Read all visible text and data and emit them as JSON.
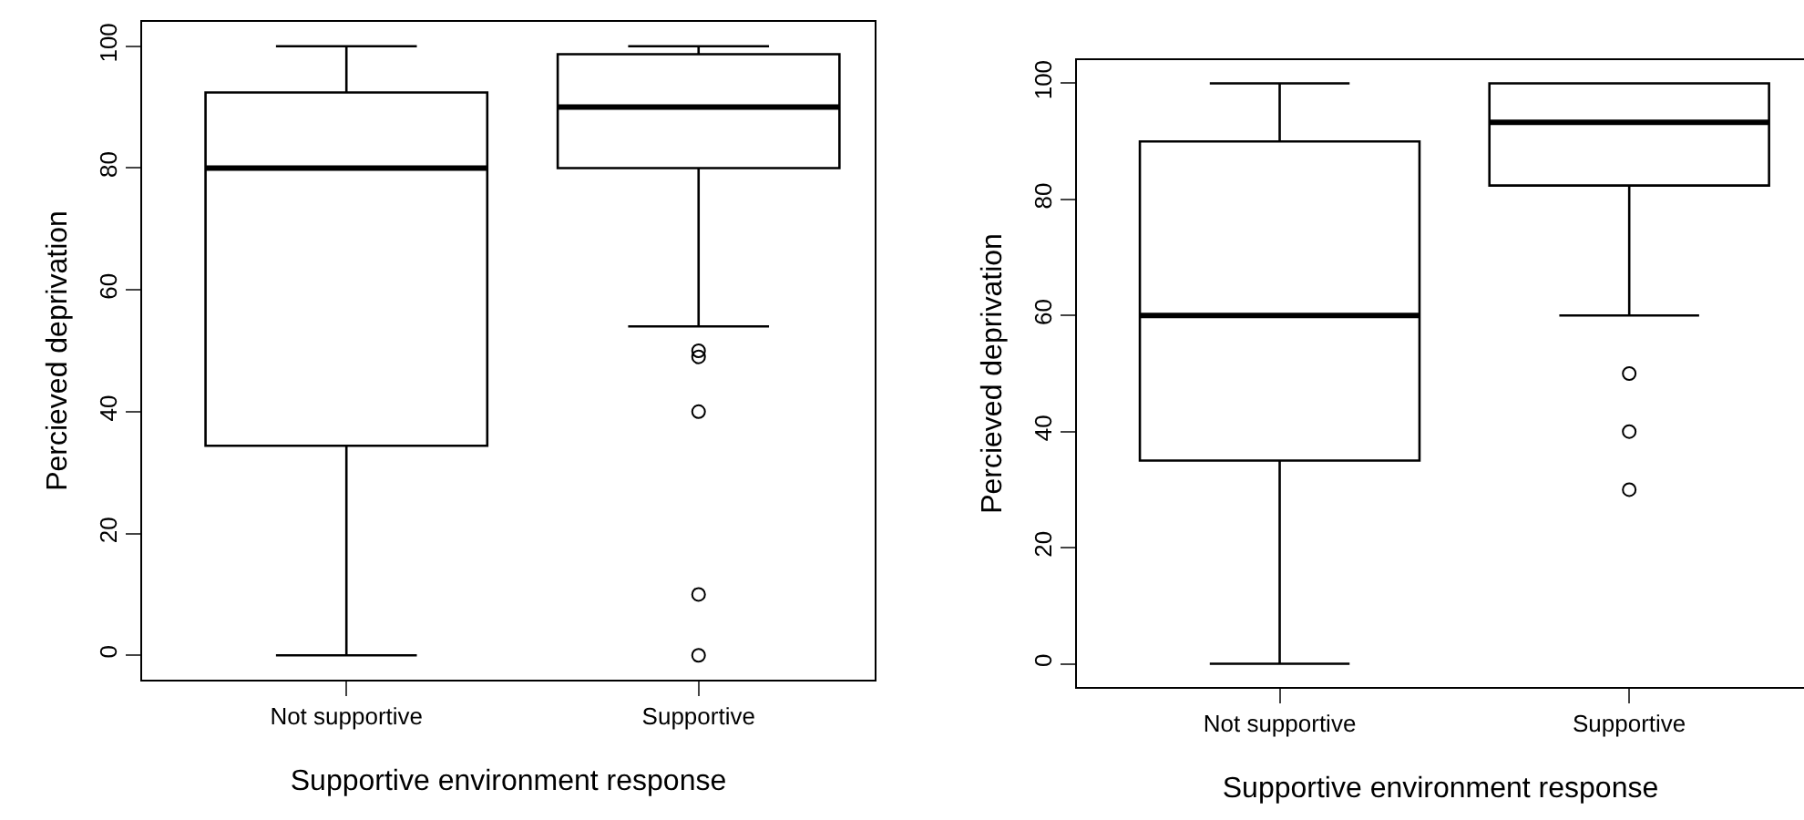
{
  "chart_data": [
    {
      "type": "box",
      "xlabel": "Supportive environment response",
      "ylabel": "Percieved deprivation",
      "categories": [
        "Not supportive",
        "Supportive"
      ],
      "boxes": [
        {
          "low": 0,
          "q1": 34.4,
          "median": 80,
          "q3": 92.4,
          "high": 100
        },
        {
          "low": 54,
          "q1": 80,
          "median": 90,
          "q3": 98.7,
          "high": 100,
          "outliers": [
            50,
            49,
            40,
            10,
            0
          ]
        }
      ],
      "color": "#000000",
      "ylim": [
        -4,
        104
      ],
      "yticks": [
        0,
        20,
        40,
        60,
        80,
        100
      ]
    },
    {
      "type": "box",
      "xlabel": "Supportive environment response",
      "ylabel": "Percieved deprivation",
      "categories": [
        "Not supportive",
        "Supportive"
      ],
      "boxes": [
        {
          "low": 0,
          "q1": 35,
          "median": 60,
          "q3": 90,
          "high": 100
        },
        {
          "low": 60,
          "q1": 82.4,
          "median": 93.3,
          "q3": 100,
          "high": 100,
          "outliers": [
            50,
            40,
            30
          ]
        }
      ],
      "color": "#000000",
      "ylim": [
        -4,
        104
      ],
      "yticks": [
        0,
        20,
        40,
        60,
        80,
        100
      ]
    }
  ]
}
